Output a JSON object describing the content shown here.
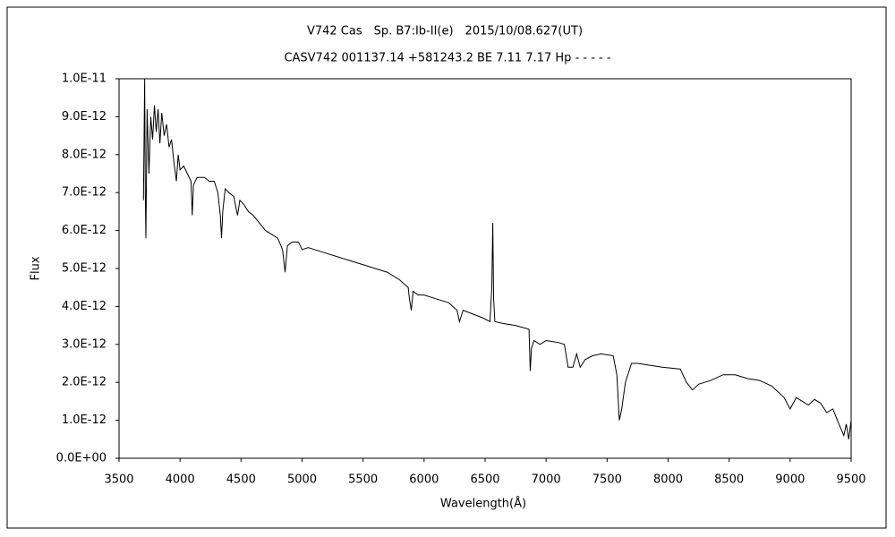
{
  "chart_data": {
    "type": "line",
    "title": "V742 Cas　Sp. B7:Ib-II(e)　2015/10/08.627(UT)",
    "subtitle": "CASV742 001137.14 +581243.2 BE 7.11 7.17 Hp - - - - -",
    "x_label": "Wavelength(Å)",
    "y_label": "Flux",
    "xlim": [
      3500,
      9500
    ],
    "xticks": [
      3500,
      4000,
      4500,
      5000,
      5500,
      6000,
      6500,
      7000,
      7500,
      8000,
      8500,
      9000,
      9500
    ],
    "ylim": [
      0,
      1e-11
    ],
    "yticks": [
      {
        "value": 0,
        "label": "0.0E+00"
      },
      {
        "value": 1e-12,
        "label": "1.0E-12"
      },
      {
        "value": 2e-12,
        "label": "2.0E-12"
      },
      {
        "value": 3e-12,
        "label": "3.0E-12"
      },
      {
        "value": 4e-12,
        "label": "4.0E-12"
      },
      {
        "value": 5e-12,
        "label": "5.0E-12"
      },
      {
        "value": 6e-12,
        "label": "6.0E-12"
      },
      {
        "value": 7e-12,
        "label": "7.0E-12"
      },
      {
        "value": 8e-12,
        "label": "8.0E-12"
      },
      {
        "value": 9e-12,
        "label": "9.0E-12"
      },
      {
        "value": 1e-11,
        "label": "1.0E-11"
      }
    ],
    "grid": false,
    "color": "#000000",
    "x": [
      3700,
      3710,
      3715,
      3720,
      3730,
      3745,
      3760,
      3775,
      3790,
      3805,
      3820,
      3835,
      3850,
      3870,
      3890,
      3910,
      3930,
      3950,
      3970,
      3985,
      4000,
      4030,
      4060,
      4090,
      4100,
      4110,
      4140,
      4170,
      4200,
      4240,
      4280,
      4310,
      4330,
      4340,
      4350,
      4370,
      4400,
      4440,
      4471,
      4490,
      4520,
      4560,
      4600,
      4650,
      4700,
      4750,
      4800,
      4840,
      4861,
      4880,
      4920,
      4970,
      5000,
      5050,
      5100,
      5200,
      5300,
      5400,
      5500,
      5600,
      5700,
      5800,
      5870,
      5880,
      5895,
      5910,
      5950,
      6000,
      6100,
      6200,
      6270,
      6290,
      6320,
      6400,
      6480,
      6540,
      6555,
      6563,
      6570,
      6580,
      6650,
      6750,
      6860,
      6870,
      6880,
      6900,
      6950,
      7000,
      7100,
      7150,
      7180,
      7220,
      7250,
      7280,
      7320,
      7380,
      7450,
      7550,
      7580,
      7600,
      7620,
      7650,
      7700,
      7750,
      7850,
      7950,
      8100,
      8150,
      8200,
      8250,
      8350,
      8450,
      8550,
      8650,
      8750,
      8850,
      8950,
      9000,
      9050,
      9100,
      9150,
      9200,
      9250,
      9300,
      9350,
      9400,
      9440,
      9460,
      9480,
      9500
    ],
    "values": [
      6.8e-12,
      1e-11,
      7e-12,
      5.8e-12,
      9.2e-12,
      7.5e-12,
      9e-12,
      8.4e-12,
      9.3e-12,
      8.6e-12,
      9.2e-12,
      8.3e-12,
      9.1e-12,
      8.5e-12,
      8.8e-12,
      8.2e-12,
      8.4e-12,
      7.8e-12,
      7.3e-12,
      8e-12,
      7.6e-12,
      7.7e-12,
      7.5e-12,
      7.3e-12,
      6.4e-12,
      7.2e-12,
      7.4e-12,
      7.4e-12,
      7.4e-12,
      7.3e-12,
      7.3e-12,
      7e-12,
      6.4e-12,
      5.8e-12,
      6.5e-12,
      7.1e-12,
      7e-12,
      6.9e-12,
      6.4e-12,
      6.8e-12,
      6.7e-12,
      6.5e-12,
      6.4e-12,
      6.2e-12,
      6e-12,
      5.9e-12,
      5.8e-12,
      5.5e-12,
      4.9e-12,
      5.6e-12,
      5.7e-12,
      5.7e-12,
      5.5e-12,
      5.55e-12,
      5.5e-12,
      5.4e-12,
      5.3e-12,
      5.2e-12,
      5.1e-12,
      5e-12,
      4.9e-12,
      4.7e-12,
      4.5e-12,
      4.2e-12,
      3.9e-12,
      4.4e-12,
      4.3e-12,
      4.3e-12,
      4.2e-12,
      4.1e-12,
      3.9e-12,
      3.6e-12,
      3.9e-12,
      3.8e-12,
      3.7e-12,
      3.6e-12,
      4.5e-12,
      6.2e-12,
      4.2e-12,
      3.6e-12,
      3.55e-12,
      3.5e-12,
      3.4e-12,
      2.3e-12,
      2.9e-12,
      3.1e-12,
      3e-12,
      3.1e-12,
      3.05e-12,
      3e-12,
      2.4e-12,
      2.4e-12,
      2.75e-12,
      2.4e-12,
      2.6e-12,
      2.7e-12,
      2.75e-12,
      2.7e-12,
      2.2e-12,
      1e-12,
      1.3e-12,
      2e-12,
      2.5e-12,
      2.5e-12,
      2.45e-12,
      2.4e-12,
      2.35e-12,
      2e-12,
      1.8e-12,
      1.95e-12,
      2.05e-12,
      2.2e-12,
      2.2e-12,
      2.1e-12,
      2.05e-12,
      1.9e-12,
      1.6e-12,
      1.3e-12,
      1.6e-12,
      1.5e-12,
      1.4e-12,
      1.55e-12,
      1.45e-12,
      1.2e-12,
      1.3e-12,
      9e-13,
      6e-13,
      9e-13,
      5e-13,
      1e-12
    ]
  }
}
